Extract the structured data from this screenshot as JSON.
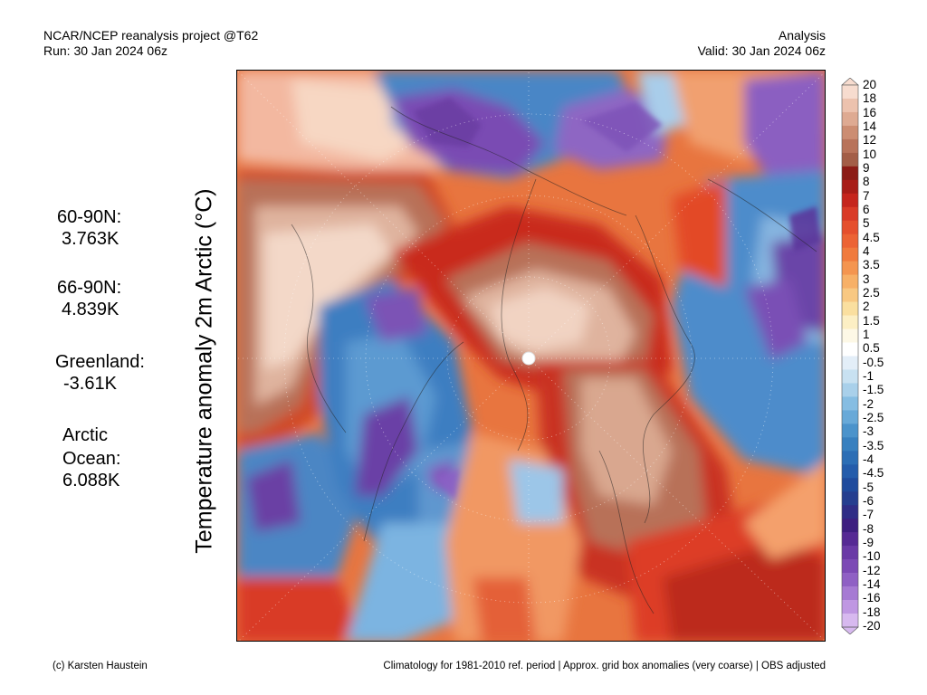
{
  "header": {
    "left_line1": "NCAR/NCEP reanalysis project @T62",
    "left_line2": "Run: 30 Jan 2024 06z",
    "right_line1": "Analysis",
    "right_line2": "Valid: 30 Jan 2024 06z"
  },
  "title": "Temperature anomaly 2m Arctic (°C)",
  "stats": {
    "n60": {
      "label": "60-90N:",
      "value": "3.763K"
    },
    "n66": {
      "label": "66-90N:",
      "value": "4.839K"
    },
    "greenland": {
      "label": "Greenland:",
      "value": "-3.61K"
    },
    "arctic_ocean": {
      "label1": "Arctic",
      "label2": "Ocean:",
      "value": "6.088K"
    }
  },
  "colorbar": {
    "labels": [
      "20",
      "18",
      "16",
      "14",
      "12",
      "10",
      "9",
      "8",
      "7",
      "6",
      "5",
      "4.5",
      "4",
      "3.5",
      "3",
      "2.5",
      "2",
      "1.5",
      "1",
      "0.5",
      "-0.5",
      "-1",
      "-1.5",
      "-2",
      "-2.5",
      "-3",
      "-3.5",
      "-4",
      "-4.5",
      "-5",
      "-6",
      "-7",
      "-8",
      "-9",
      "-10",
      "-12",
      "-14",
      "-16",
      "-18",
      "-20"
    ],
    "colors": [
      "#f7dccf",
      "#ecc2ae",
      "#deaa92",
      "#cc8d72",
      "#b8735a",
      "#a35e47",
      "#8c1c16",
      "#a81d18",
      "#c5251d",
      "#d93a27",
      "#e54f2d",
      "#ec6334",
      "#f07a3d",
      "#f49550",
      "#f7b067",
      "#f8c882",
      "#fadf9f",
      "#fcefc4",
      "#fdf8e6",
      "#ffffff",
      "#e3eef8",
      "#c8e1f1",
      "#a9d0ea",
      "#86bde2",
      "#68a9d8",
      "#4b93cb",
      "#3880bf",
      "#2c6eb5",
      "#245cab",
      "#1f4b9d",
      "#253e8f",
      "#2f2d86",
      "#3e1f80",
      "#562a94",
      "#6a3aa6",
      "#7c4ab5",
      "#8f60c4",
      "#a67ad3",
      "#bf97e2",
      "#d7b9ef"
    ]
  },
  "footer": {
    "left": "(c) Karsten Haustein",
    "right": "Climatology for 1981-2010 ref. period | Approx. grid box anomalies (very coarse) | OBS adjusted"
  }
}
